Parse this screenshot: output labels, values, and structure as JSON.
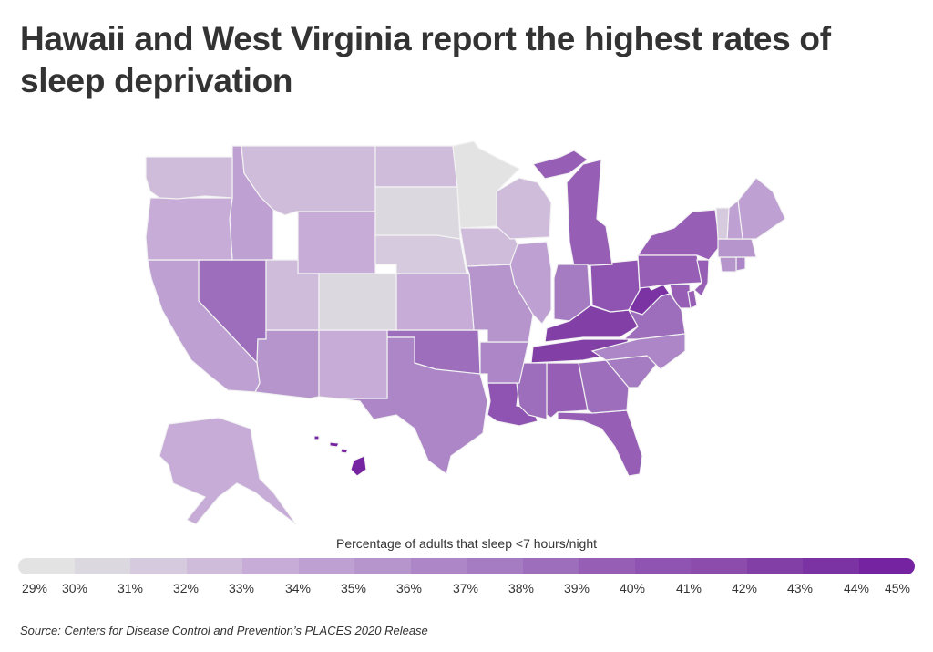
{
  "title": "Hawaii and West Virginia report the highest rates of sleep deprivation",
  "legend": {
    "title": "Percentage of adults that sleep <7 hours/night",
    "ticks": [
      "29%",
      "30%",
      "31%",
      "32%",
      "33%",
      "34%",
      "35%",
      "36%",
      "37%",
      "38%",
      "39%",
      "40%",
      "41%",
      "42%",
      "43%",
      "44%",
      "45%"
    ],
    "colors": [
      "#e3e3e3",
      "#dcd8e0",
      "#d6cade",
      "#cfbcdb",
      "#c6acd7",
      "#bea1d2",
      "#b595cc",
      "#ac86c6",
      "#a57bc1",
      "#9d6ebb",
      "#965fb5",
      "#8f54b1",
      "#8b4cab",
      "#8240a7",
      "#7b33a4",
      "#7623a2"
    ]
  },
  "chart_data": {
    "type": "choropleth",
    "title": "Hawaii and West Virginia report the highest rates of sleep deprivation",
    "legend_title": "Percentage of adults that sleep <7 hours/night",
    "scale_range": [
      29,
      45
    ],
    "unit": "%",
    "regions": [
      {
        "state": "Hawaii",
        "value": 44
      },
      {
        "state": "West Virginia",
        "value": 43
      },
      {
        "state": "Kentucky",
        "value": 42
      },
      {
        "state": "Tennessee",
        "value": 42
      },
      {
        "state": "Ohio",
        "value": 40
      },
      {
        "state": "Michigan",
        "value": 39
      },
      {
        "state": "New York",
        "value": 39
      },
      {
        "state": "Pennsylvania",
        "value": 39
      },
      {
        "state": "Louisiana",
        "value": 40
      },
      {
        "state": "Alabama",
        "value": 39
      },
      {
        "state": "Florida",
        "value": 39
      },
      {
        "state": "Nevada",
        "value": 38
      },
      {
        "state": "Oklahoma",
        "value": 38
      },
      {
        "state": "Maryland",
        "value": 39
      },
      {
        "state": "New Jersey",
        "value": 39
      },
      {
        "state": "Delaware",
        "value": 39
      },
      {
        "state": "Virginia",
        "value": 38
      },
      {
        "state": "Georgia",
        "value": 38
      },
      {
        "state": "Mississippi",
        "value": 38
      },
      {
        "state": "Indiana",
        "value": 37
      },
      {
        "state": "South Carolina",
        "value": 37
      },
      {
        "state": "Texas",
        "value": 36
      },
      {
        "state": "North Carolina",
        "value": 36
      },
      {
        "state": "Arkansas",
        "value": 36
      },
      {
        "state": "Missouri",
        "value": 35
      },
      {
        "state": "Arizona",
        "value": 35
      },
      {
        "state": "Rhode Island",
        "value": 36
      },
      {
        "state": "Connecticut",
        "value": 35
      },
      {
        "state": "Massachusetts",
        "value": 35
      },
      {
        "state": "Idaho",
        "value": 34
      },
      {
        "state": "California",
        "value": 34
      },
      {
        "state": "Illinois",
        "value": 34
      },
      {
        "state": "Maine",
        "value": 34
      },
      {
        "state": "New Hampshire",
        "value": 34
      },
      {
        "state": "Oregon",
        "value": 33
      },
      {
        "state": "Wyoming",
        "value": 33
      },
      {
        "state": "New Mexico",
        "value": 33
      },
      {
        "state": "Kansas",
        "value": 33
      },
      {
        "state": "Alaska",
        "value": 33
      },
      {
        "state": "Washington",
        "value": 32
      },
      {
        "state": "Montana",
        "value": 32
      },
      {
        "state": "North Dakota",
        "value": 32
      },
      {
        "state": "Utah",
        "value": 32
      },
      {
        "state": "Iowa",
        "value": 32
      },
      {
        "state": "Wisconsin",
        "value": 32
      },
      {
        "state": "Nebraska",
        "value": 31
      },
      {
        "state": "Vermont",
        "value": 31
      },
      {
        "state": "South Dakota",
        "value": 30
      },
      {
        "state": "Colorado",
        "value": 30
      },
      {
        "state": "Minnesota",
        "value": 29
      }
    ]
  },
  "source": "Source:  Centers for Disease Control and Prevention’s PLACES 2020 Release"
}
